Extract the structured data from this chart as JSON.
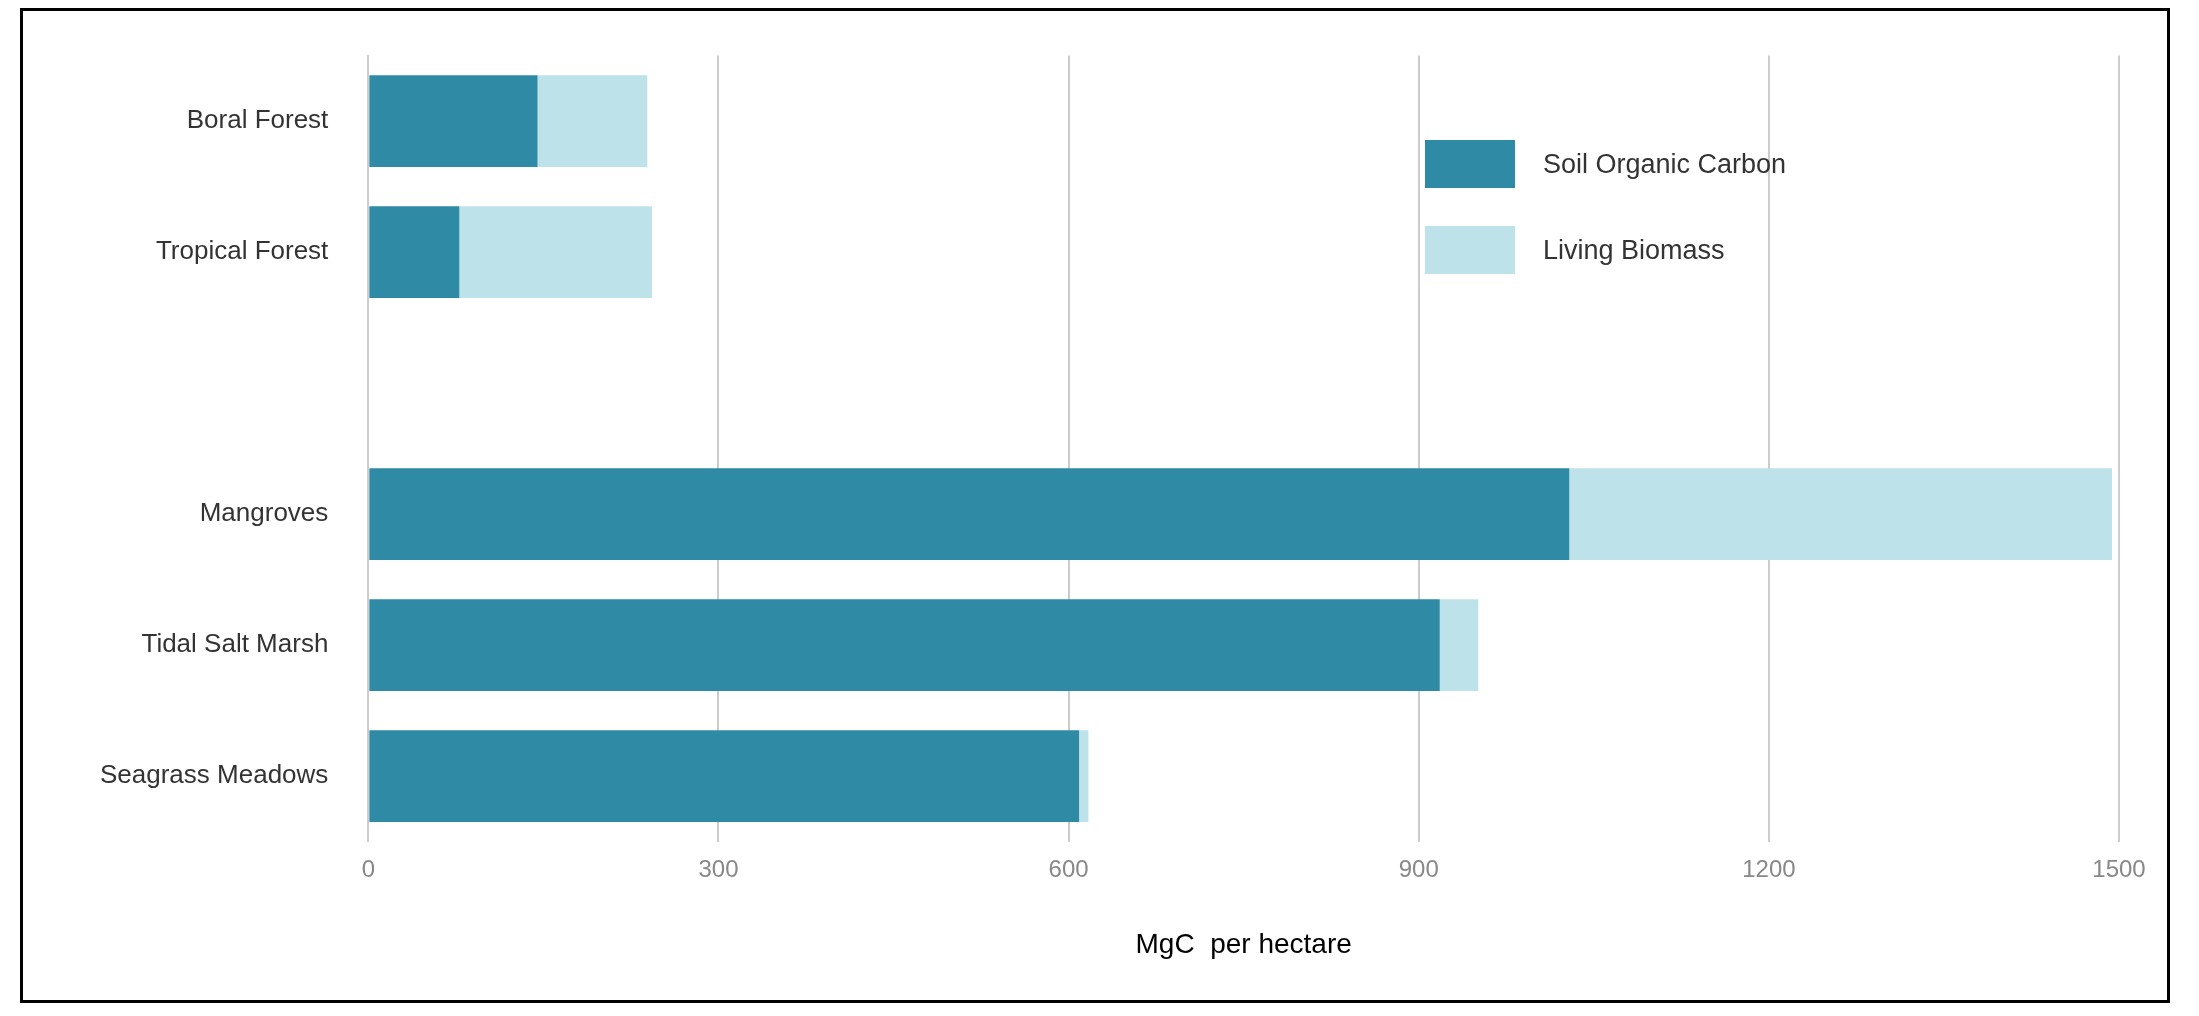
{
  "chart_data": {
    "type": "bar",
    "orientation": "horizontal",
    "stacked": true,
    "xlabel": "MgC  per hectare",
    "categories": [
      "Boral Forest",
      "Tropical Forest",
      null,
      "Mangroves",
      "Tidal Salt Marsh",
      "Seagrass Meadows"
    ],
    "series": [
      {
        "name": "Soil Organic Carbon",
        "color": "#2e8aa5",
        "values": [
          145,
          78,
          null,
          1029,
          918,
          609
        ]
      },
      {
        "name": "Living Biomass",
        "color": "#bde2ea",
        "values": [
          94,
          165,
          null,
          465,
          33,
          8
        ]
      }
    ],
    "xlim": [
      0,
      1500
    ],
    "xticks": [
      0,
      300,
      600,
      900,
      1200,
      1500
    ],
    "grid": "x",
    "legend": "top right"
  }
}
